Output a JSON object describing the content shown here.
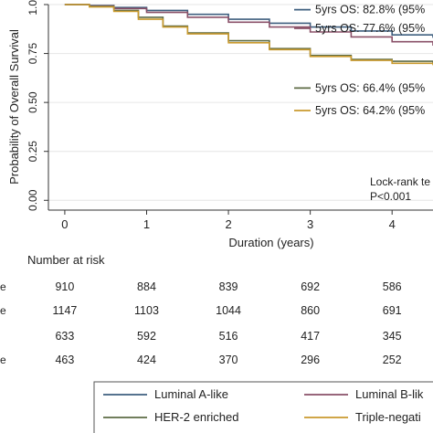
{
  "chart_data": {
    "type": "line",
    "ylabel": "Probability of Overall Survival",
    "xlabel": "Duration (years)",
    "xlim": [
      -0.2,
      4.5
    ],
    "ylim": [
      -0.05,
      1.0
    ],
    "x_ticks": [
      0,
      1,
      2,
      3,
      4
    ],
    "x_tick_labels": [
      "0",
      "1",
      "2",
      "3",
      "4"
    ],
    "y_ticks": [
      0.0,
      0.25,
      0.5,
      0.75,
      1.0
    ],
    "y_tick_labels": [
      "0.00",
      "0.25",
      "0.50",
      "0.75",
      "1.00"
    ],
    "grid": "horizontal",
    "series": [
      {
        "name": "Luminal A-like",
        "color": "#3e5f7f",
        "x": [
          0,
          0.3,
          0.6,
          1.0,
          1.5,
          2.0,
          2.5,
          3.0,
          3.5,
          4.0,
          4.5
        ],
        "y": [
          1.0,
          0.995,
          0.985,
          0.97,
          0.95,
          0.925,
          0.905,
          0.885,
          0.865,
          0.845,
          0.83
        ]
      },
      {
        "name": "Luminal B-like",
        "color": "#8a5068",
        "x": [
          0,
          0.3,
          0.6,
          1.0,
          1.5,
          2.0,
          2.5,
          3.0,
          3.5,
          4.0,
          4.5
        ],
        "y": [
          1.0,
          0.993,
          0.98,
          0.96,
          0.935,
          0.91,
          0.885,
          0.86,
          0.835,
          0.81,
          0.79
        ]
      },
      {
        "name": "HER-2 enriched",
        "color": "#5d6b45",
        "x": [
          0,
          0.3,
          0.6,
          0.9,
          1.2,
          1.5,
          2.0,
          2.5,
          3.0,
          3.5,
          4.0,
          4.5
        ],
        "y": [
          1.0,
          0.99,
          0.97,
          0.935,
          0.89,
          0.855,
          0.815,
          0.775,
          0.74,
          0.72,
          0.71,
          0.7
        ]
      },
      {
        "name": "Triple-negative",
        "color": "#c99a2e",
        "x": [
          0,
          0.3,
          0.6,
          0.9,
          1.2,
          1.5,
          2.0,
          2.5,
          3.0,
          3.5,
          4.0,
          4.5
        ],
        "y": [
          1.0,
          0.988,
          0.965,
          0.925,
          0.885,
          0.85,
          0.805,
          0.77,
          0.735,
          0.715,
          0.7,
          0.69
        ]
      }
    ],
    "annotations": [
      {
        "text": "5yrs OS:  82.8% (95%",
        "color": "#3e5f7f",
        "y": 0.955
      },
      {
        "text": "5yrs OS:  77.6% (95%",
        "color": "#8a5068",
        "y": 0.86
      },
      {
        "text": "5yrs OS:  66.4% (95%",
        "color": "#5d6b45",
        "y": 0.555
      },
      {
        "text": "5yrs OS:  64.2% (95%",
        "color": "#c99a2e",
        "y": 0.44
      }
    ],
    "logrank": {
      "line1": "Lock-rank te",
      "line2": "P<0.001"
    },
    "risk_table": {
      "title": "Number  at risk",
      "rows": [
        {
          "label": "e",
          "values": [
            "910",
            "884",
            "839",
            "692",
            "586"
          ]
        },
        {
          "label": "e",
          "values": [
            "1147",
            "1103",
            "1044",
            "860",
            "691"
          ]
        },
        {
          "label": "",
          "values": [
            "633",
            "592",
            "516",
            "417",
            "345"
          ]
        },
        {
          "label": "e",
          "values": [
            "463",
            "424",
            "370",
            "296",
            "252"
          ]
        }
      ]
    },
    "legend": {
      "placement": "bottom",
      "items": [
        {
          "label": "Luminal A-like",
          "color": "#3e5f7f"
        },
        {
          "label": "Luminal B-lik",
          "color": "#8a5068"
        },
        {
          "label": "HER-2 enriched",
          "color": "#5d6b45"
        },
        {
          "label": "Triple-negati",
          "color": "#c99a2e"
        }
      ]
    }
  }
}
